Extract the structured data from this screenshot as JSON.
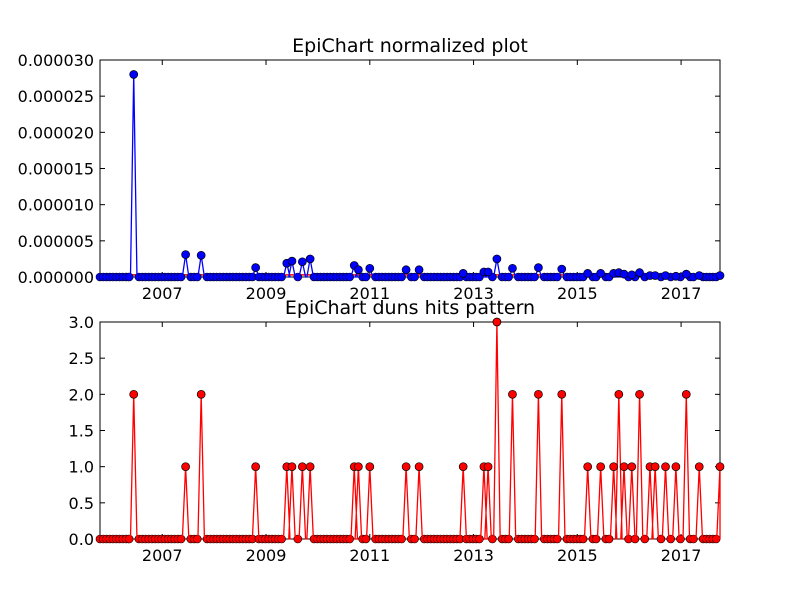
{
  "chart_data": [
    {
      "type": "line",
      "title": "EpiChart normalized plot",
      "xlabel": "",
      "ylabel": "",
      "xlim": [
        2005.8,
        2017.75
      ],
      "ylim": [
        0,
        3e-05
      ],
      "x_ticks": [
        "2007",
        "2009",
        "2011",
        "2013",
        "2015",
        "2017"
      ],
      "y_ticks": [
        "0.000000",
        "0.000005",
        "0.000010",
        "0.000015",
        "0.000020",
        "0.000025",
        "0.000030"
      ],
      "colors": {
        "series": "#0000ff",
        "trend": "#ff0000"
      },
      "series": [
        {
          "values": [
            [
              2006.45,
              2.8e-05
            ],
            [
              2007.45,
              3.1e-06
            ],
            [
              2007.75,
              3e-06
            ],
            [
              2008.8,
              1.3e-06
            ],
            [
              2009.4,
              1.9e-06
            ],
            [
              2009.5,
              2.2e-06
            ],
            [
              2009.7,
              2.1e-06
            ],
            [
              2009.85,
              2.5e-06
            ],
            [
              2010.7,
              1.6e-06
            ],
            [
              2010.78,
              1e-06
            ],
            [
              2011.0,
              1.2e-06
            ],
            [
              2011.7,
              1e-06
            ],
            [
              2011.95,
              1e-06
            ],
            [
              2012.8,
              5e-07
            ],
            [
              2013.2,
              7e-07
            ],
            [
              2013.28,
              7e-07
            ],
            [
              2013.45,
              2.5e-06
            ],
            [
              2013.75,
              1.2e-06
            ],
            [
              2014.25,
              1.3e-06
            ],
            [
              2014.7,
              1.1e-06
            ],
            [
              2015.2,
              5e-07
            ],
            [
              2015.45,
              5e-07
            ],
            [
              2015.7,
              5e-07
            ],
            [
              2015.8,
              6e-07
            ],
            [
              2015.9,
              4e-07
            ],
            [
              2016.05,
              3e-07
            ],
            [
              2016.2,
              6e-07
            ],
            [
              2016.4,
              2e-07
            ],
            [
              2016.5,
              2e-07
            ],
            [
              2016.7,
              2e-07
            ],
            [
              2016.9,
              1e-07
            ],
            [
              2017.1,
              4e-07
            ],
            [
              2017.35,
              2e-07
            ],
            [
              2017.75,
              2e-07
            ]
          ]
        },
        {
          "values": [
            [
              2005.8,
              3e-07
            ],
            [
              2017.75,
              3e-07
            ]
          ]
        }
      ]
    },
    {
      "type": "line",
      "title": "EpiChart duns hits pattern",
      "xlabel": "",
      "ylabel": "",
      "xlim": [
        2005.8,
        2017.75
      ],
      "ylim": [
        0,
        3
      ],
      "x_ticks": [
        "2007",
        "2009",
        "2011",
        "2013",
        "2015",
        "2017"
      ],
      "y_ticks": [
        "0.0",
        "0.5",
        "1.0",
        "1.5",
        "2.0",
        "2.5",
        "3.0"
      ],
      "colors": {
        "series": "#ff0000",
        "marker_edge": "#000000"
      },
      "series": [
        {
          "values": [
            [
              2006.45,
              2
            ],
            [
              2007.45,
              1
            ],
            [
              2007.75,
              2
            ],
            [
              2008.8,
              1
            ],
            [
              2009.4,
              1
            ],
            [
              2009.5,
              1
            ],
            [
              2009.7,
              1
            ],
            [
              2009.85,
              1
            ],
            [
              2010.7,
              1
            ],
            [
              2010.78,
              1
            ],
            [
              2011.0,
              1
            ],
            [
              2011.7,
              1
            ],
            [
              2011.95,
              1
            ],
            [
              2012.8,
              1
            ],
            [
              2013.2,
              1
            ],
            [
              2013.28,
              1
            ],
            [
              2013.45,
              3
            ],
            [
              2013.75,
              2
            ],
            [
              2014.25,
              2
            ],
            [
              2014.7,
              2
            ],
            [
              2015.2,
              1
            ],
            [
              2015.45,
              1
            ],
            [
              2015.7,
              1
            ],
            [
              2015.8,
              2
            ],
            [
              2015.9,
              1
            ],
            [
              2016.05,
              1
            ],
            [
              2016.2,
              2
            ],
            [
              2016.4,
              1
            ],
            [
              2016.5,
              1
            ],
            [
              2016.7,
              1
            ],
            [
              2016.9,
              1
            ],
            [
              2017.1,
              2
            ],
            [
              2017.35,
              1
            ],
            [
              2017.75,
              1
            ]
          ]
        }
      ]
    }
  ]
}
